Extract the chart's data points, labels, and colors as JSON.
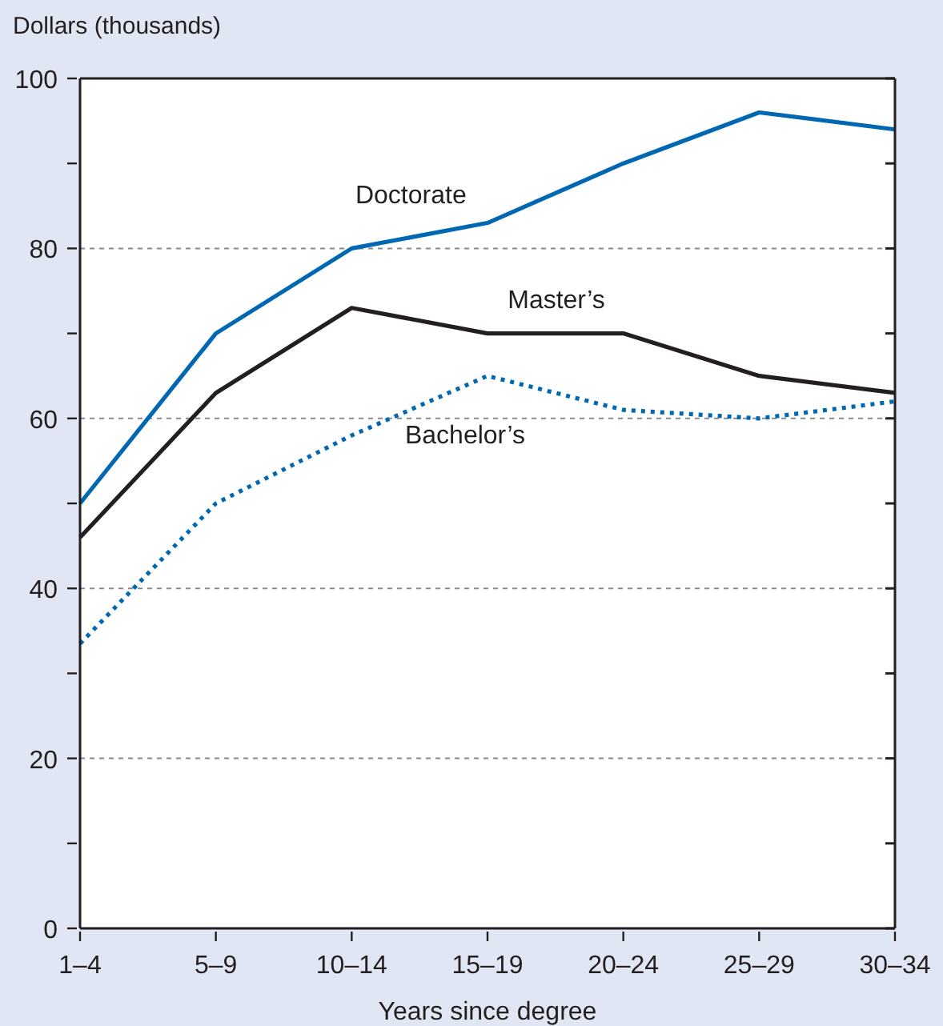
{
  "chart_data": {
    "type": "line",
    "ylabel": "Dollars (thousands)",
    "xlabel": "Years since degree",
    "categories": [
      "1–4",
      "5–9",
      "10–14",
      "15–19",
      "20–24",
      "25–29",
      "30–34"
    ],
    "series": [
      {
        "name": "Doctorate",
        "color": "#0068b3",
        "line_style": "solid",
        "values": [
          50,
          70,
          80,
          83,
          90,
          96,
          94
        ]
      },
      {
        "name": "Master’s",
        "color": "#231f20",
        "line_style": "solid",
        "values": [
          46,
          63,
          73,
          70,
          70,
          65,
          63
        ]
      },
      {
        "name": "Bachelor’s",
        "color": "#0068b3",
        "line_style": "dotted",
        "values": [
          33.5,
          50,
          58,
          65,
          61,
          60,
          62
        ]
      }
    ],
    "ylim": [
      0,
      100
    ],
    "yticks": [
      0,
      {
        "value": 10,
        "label": null
      },
      20,
      {
        "value": 30,
        "label": null
      },
      40,
      {
        "value": 50,
        "label": null
      },
      60,
      {
        "value": 70,
        "label": null
      },
      80,
      {
        "value": 90,
        "label": null
      },
      100
    ],
    "grid": "y",
    "marker": "none"
  }
}
